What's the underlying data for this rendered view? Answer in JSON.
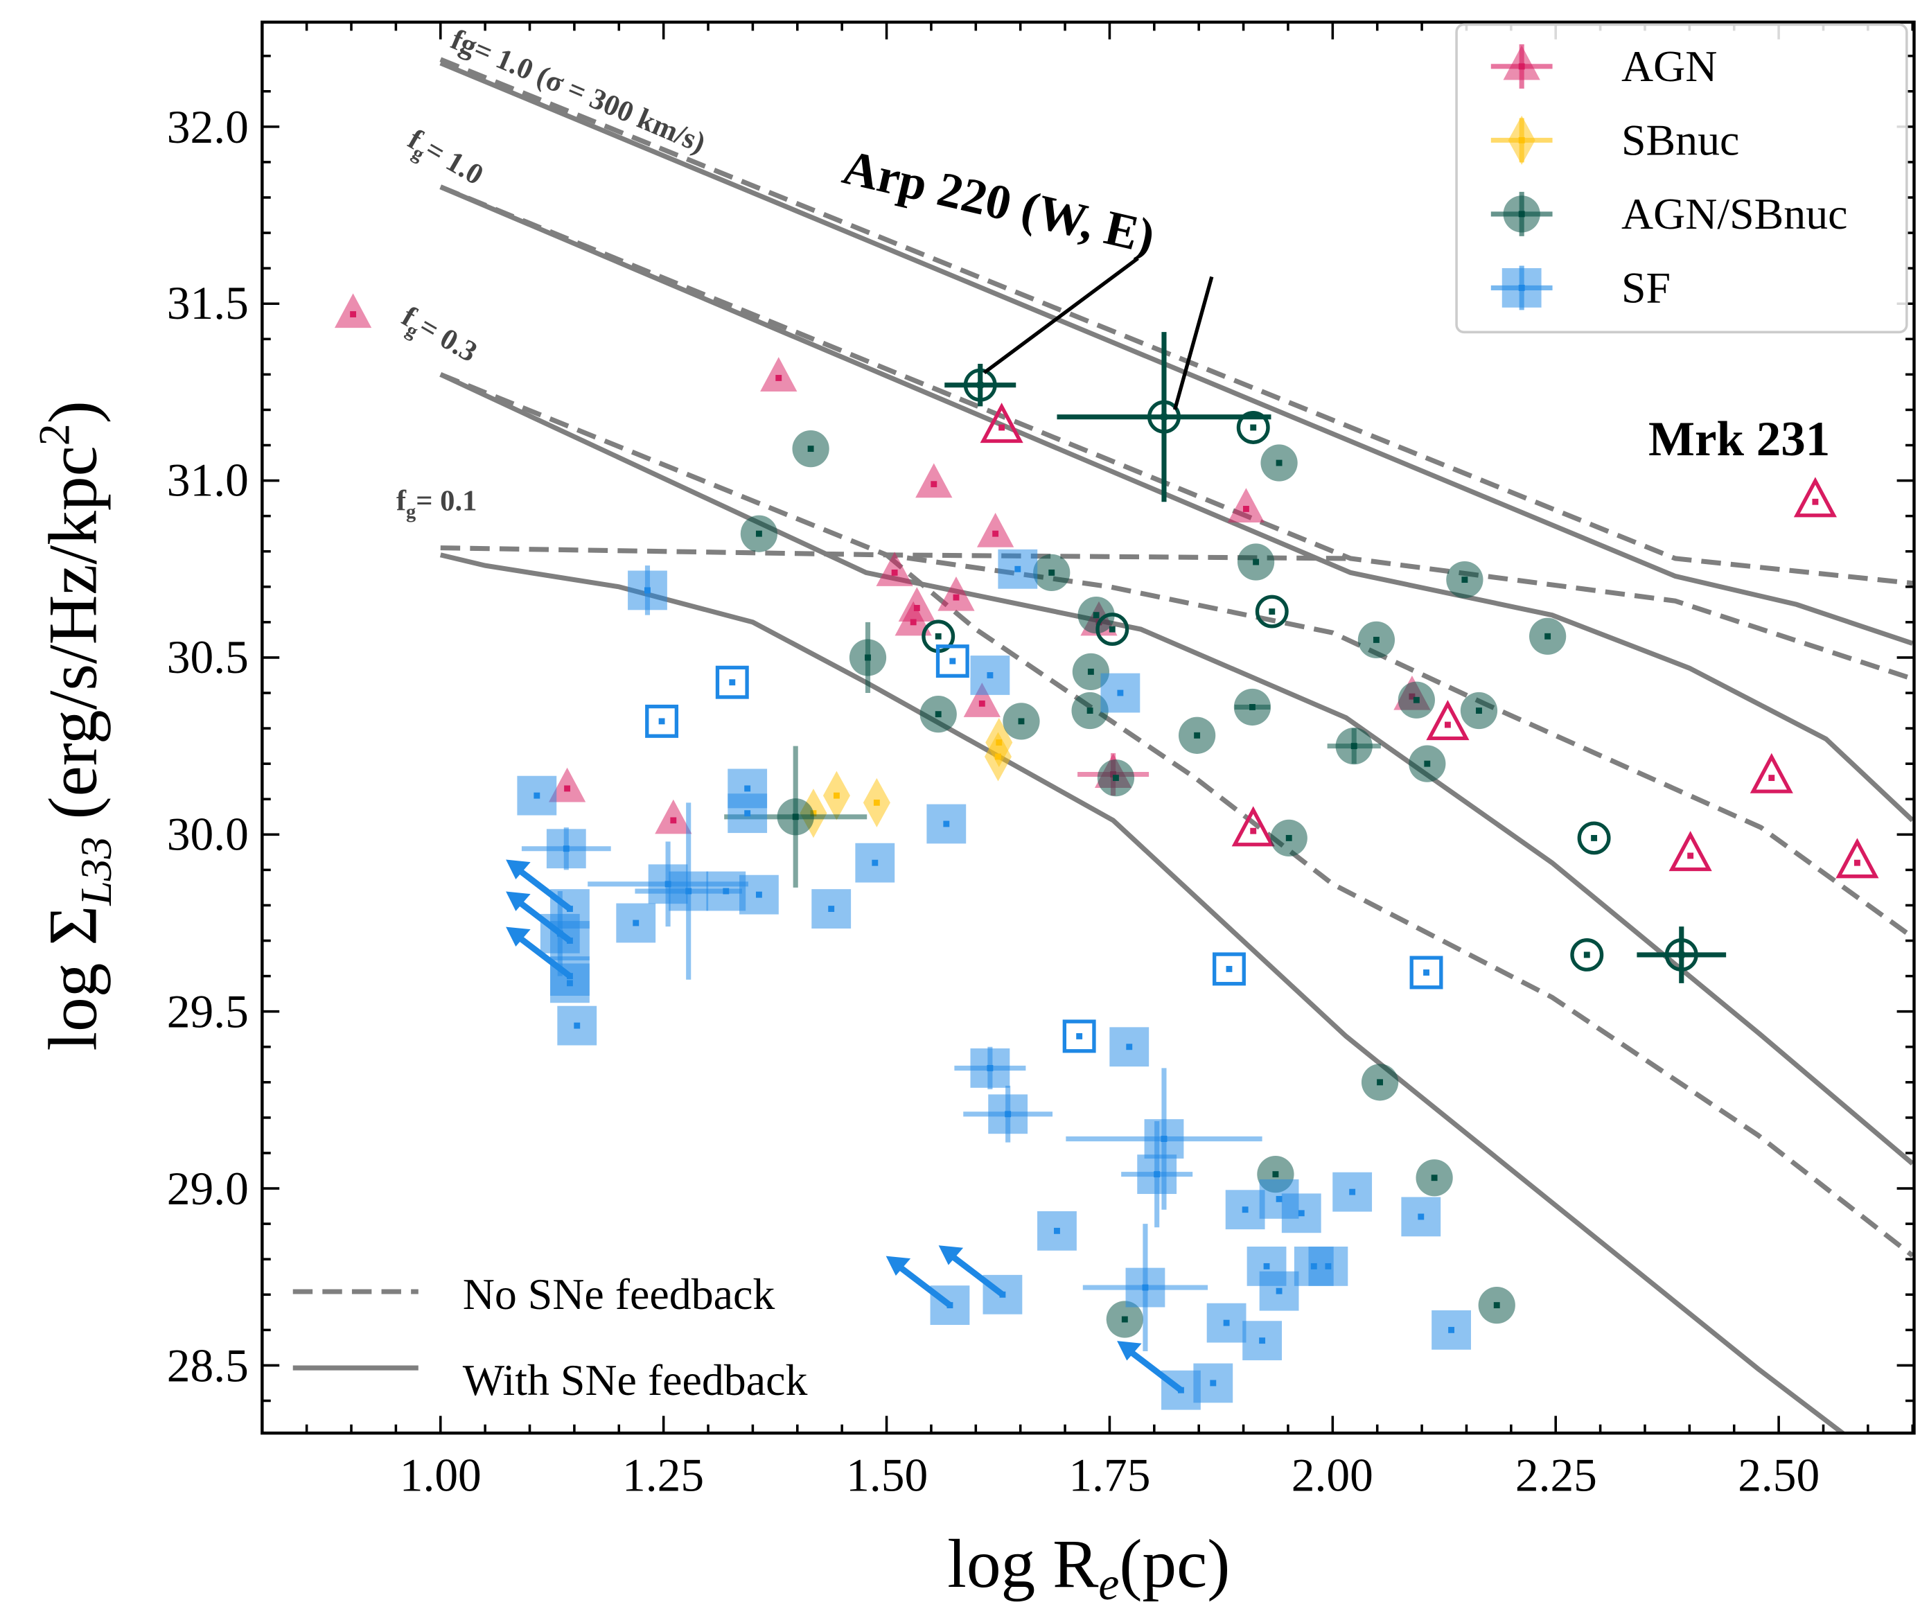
{
  "chart_data": {
    "type": "scatter",
    "xlabel": "log R",
    "xlabel_sub": "e",
    "xlabel_unit": "(pc)",
    "ylabel": "log Σ",
    "ylabel_sub": "L33",
    "ylabel_unit": "(erg/s/Hz/kpc",
    "ylabel_sup": "2",
    "ylabel_close": ")",
    "xlim": [
      0.8,
      2.652
    ],
    "ylim": [
      28.31,
      32.295
    ],
    "xticks": [
      "1.00",
      "1.25",
      "1.50",
      "1.75",
      "2.00",
      "2.25",
      "2.50"
    ],
    "yticks": [
      "28.5",
      "29.0",
      "29.5",
      "30.0",
      "30.5",
      "31.0",
      "31.5",
      "32.0"
    ],
    "grid": false,
    "legend_position": "top-right",
    "colors": {
      "AGN": "#d81b60",
      "SBnuc": "#ffc107",
      "AGN/SBnuc": "#004d40",
      "SF": "#1e88e5",
      "model": "#7f7f7f"
    },
    "series": [
      {
        "name": "AGN",
        "marker": "triangle",
        "filled": [
          [
            0.902,
            31.47
          ],
          [
            1.379,
            31.29
          ],
          [
            1.553,
            30.99
          ],
          [
            1.622,
            30.85
          ],
          [
            1.509,
            30.74
          ],
          [
            1.534,
            30.64
          ],
          [
            1.578,
            30.67
          ],
          [
            1.53,
            30.6
          ],
          [
            1.607,
            30.37
          ],
          [
            1.738,
            30.6
          ],
          [
            1.903,
            30.92
          ],
          [
            2.089,
            30.39
          ],
          [
            1.754,
            30.17,
            0.04,
            0.06
          ],
          [
            1.142,
            30.13
          ],
          [
            1.261,
            30.04
          ]
        ],
        "open": [
          [
            1.629,
            31.15
          ],
          [
            2.541,
            30.94
          ],
          [
            1.911,
            30.01
          ],
          [
            2.129,
            30.31
          ],
          [
            2.492,
            30.16
          ],
          [
            2.401,
            29.94
          ],
          [
            2.588,
            29.92
          ]
        ]
      },
      {
        "name": "SBnuc",
        "marker": "diamond",
        "filled": [
          [
            1.626,
            30.26
          ],
          [
            1.625,
            30.22
          ],
          [
            1.418,
            30.06
          ],
          [
            1.444,
            30.11
          ],
          [
            1.489,
            30.09
          ]
        ],
        "open": []
      },
      {
        "name": "AGN/SBnuc",
        "marker": "circle",
        "filled": [
          [
            1.415,
            31.09
          ],
          [
            1.357,
            30.85
          ],
          [
            1.685,
            30.74
          ],
          [
            1.735,
            30.62
          ],
          [
            1.479,
            30.5,
            0,
            0.1
          ],
          [
            1.558,
            30.34
          ],
          [
            1.651,
            30.32
          ],
          [
            1.729,
            30.46
          ],
          [
            1.728,
            30.35
          ],
          [
            1.757,
            30.16
          ],
          [
            1.398,
            30.05,
            0.08,
            0.2
          ],
          [
            1.848,
            30.28
          ],
          [
            1.91,
            30.36,
            0.02,
            0
          ],
          [
            1.94,
            31.05
          ],
          [
            1.914,
            30.77
          ],
          [
            2.049,
            30.55
          ],
          [
            2.024,
            30.25,
            0.03,
            0.05
          ],
          [
            2.106,
            30.2
          ],
          [
            2.094,
            30.38
          ],
          [
            2.164,
            30.35
          ],
          [
            2.148,
            30.72
          ],
          [
            2.241,
            30.56
          ],
          [
            1.951,
            29.99
          ],
          [
            2.053,
            29.3
          ],
          [
            1.936,
            29.04
          ],
          [
            2.114,
            29.03
          ],
          [
            1.767,
            28.63
          ],
          [
            2.184,
            28.67
          ]
        ],
        "open": [
          [
            1.605,
            31.27,
            0.04,
            0.06
          ],
          [
            1.811,
            31.18,
            0.12,
            0.24
          ],
          [
            1.911,
            31.15
          ],
          [
            1.558,
            30.56
          ],
          [
            1.753,
            30.58
          ],
          [
            1.932,
            30.63
          ],
          [
            2.293,
            29.99
          ],
          [
            2.285,
            29.66
          ],
          [
            2.391,
            29.66,
            0.05,
            0.08
          ]
        ]
      },
      {
        "name": "SF",
        "marker": "square",
        "filled": [
          [
            1.232,
            30.69,
            0,
            0.07
          ],
          [
            1.647,
            30.75
          ],
          [
            1.616,
            30.45
          ],
          [
            1.762,
            30.4
          ],
          [
            1.567,
            30.03
          ],
          [
            1.108,
            30.11
          ],
          [
            1.141,
            29.96,
            0.05,
            0.06
          ],
          [
            1.344,
            30.13
          ],
          [
            1.344,
            30.06
          ],
          [
            1.255,
            29.86,
            0.09,
            0.12
          ],
          [
            1.219,
            29.75
          ],
          [
            1.278,
            29.84,
            0.06,
            0.25
          ],
          [
            1.32,
            29.84
          ],
          [
            1.357,
            29.83
          ],
          [
            1.438,
            29.79
          ],
          [
            1.487,
            29.92
          ],
          [
            1.134,
            29.72,
            0,
            0.12
          ],
          [
            1.145,
            29.58
          ],
          [
            1.153,
            29.46
          ],
          [
            1.616,
            29.34,
            0.04,
            0.06
          ],
          [
            1.636,
            29.21,
            0.05,
            0.08
          ],
          [
            1.772,
            29.4
          ],
          [
            1.811,
            29.14,
            0.11,
            0.2
          ],
          [
            1.803,
            29.04,
            0.04,
            0.15
          ],
          [
            1.691,
            28.88
          ],
          [
            1.902,
            28.94
          ],
          [
            1.94,
            28.97
          ],
          [
            1.965,
            28.93
          ],
          [
            2.022,
            28.99
          ],
          [
            2.099,
            28.92
          ],
          [
            1.926,
            28.78
          ],
          [
            1.979,
            28.78
          ],
          [
            1.995,
            28.78
          ],
          [
            1.94,
            28.71
          ],
          [
            1.79,
            28.72,
            0.07,
            0.18
          ],
          [
            1.881,
            28.62
          ],
          [
            1.921,
            28.57
          ],
          [
            2.133,
            28.6
          ],
          [
            1.866,
            28.45
          ]
        ],
        "open": [
          [
            1.574,
            30.49
          ],
          [
            1.327,
            30.43
          ],
          [
            1.248,
            30.32
          ],
          [
            1.884,
            29.62
          ],
          [
            2.105,
            29.61
          ],
          [
            1.716,
            29.43
          ]
        ],
        "upper_limits": [
          [
            1.145,
            29.79
          ],
          [
            1.145,
            29.7
          ],
          [
            1.145,
            29.6
          ],
          [
            1.571,
            28.67
          ],
          [
            1.63,
            28.7
          ],
          [
            1.83,
            28.43
          ]
        ]
      }
    ],
    "models": [
      {
        "style": "dashed",
        "points": [
          [
            1.0,
            32.19
          ],
          [
            2.384,
            30.78
          ],
          [
            2.65,
            30.71
          ]
        ]
      },
      {
        "style": "solid",
        "points": [
          [
            1.0,
            32.18
          ],
          [
            2.384,
            30.73
          ],
          [
            2.52,
            30.65
          ],
          [
            2.65,
            30.54
          ]
        ]
      },
      {
        "style": "dashed",
        "points": [
          [
            1.0,
            31.83
          ],
          [
            2.02,
            30.78
          ],
          [
            2.384,
            30.66
          ],
          [
            2.65,
            30.44
          ]
        ]
      },
      {
        "style": "solid",
        "points": [
          [
            1.0,
            31.83
          ],
          [
            2.02,
            30.74
          ],
          [
            2.246,
            30.62
          ],
          [
            2.4,
            30.47
          ],
          [
            2.553,
            30.27
          ],
          [
            2.65,
            30.04
          ]
        ]
      },
      {
        "style": "dashed",
        "points": [
          [
            1.0,
            30.81
          ],
          [
            1.5,
            30.79
          ],
          [
            2.02,
            30.78
          ]
        ]
      },
      {
        "style": "dashed",
        "points": [
          [
            1.0,
            31.3
          ],
          [
            1.5,
            30.79
          ],
          [
            1.75,
            30.7
          ],
          [
            2.0,
            30.57
          ],
          [
            2.17,
            30.37
          ],
          [
            2.48,
            30.02
          ],
          [
            2.65,
            29.71
          ]
        ]
      },
      {
        "style": "dashed",
        "points": [
          [
            1.5,
            30.79
          ],
          [
            1.6,
            30.58
          ],
          [
            1.846,
            30.16
          ],
          [
            2.0,
            29.86
          ],
          [
            2.246,
            29.54
          ],
          [
            2.477,
            29.15
          ],
          [
            2.65,
            28.81
          ]
        ]
      },
      {
        "style": "solid",
        "points": [
          [
            1.0,
            31.3
          ],
          [
            1.477,
            30.74
          ],
          [
            1.785,
            30.58
          ],
          [
            2.015,
            30.33
          ],
          [
            2.246,
            29.92
          ],
          [
            2.477,
            29.44
          ],
          [
            2.65,
            29.07
          ]
        ]
      },
      {
        "style": "solid",
        "points": [
          [
            1.0,
            30.79
          ],
          [
            1.05,
            30.76
          ],
          [
            1.2,
            30.7
          ],
          [
            1.35,
            30.6
          ],
          [
            1.477,
            30.43
          ],
          [
            1.754,
            30.04
          ],
          [
            2.015,
            29.43
          ],
          [
            2.246,
            28.96
          ],
          [
            2.477,
            28.49
          ],
          [
            2.623,
            28.21
          ]
        ]
      }
    ],
    "curve_labels": {
      "fg1_sigma": "fg= 1.0 (σ = 300 km/s)",
      "fg1_f": "f",
      "fg1_sub": "g",
      "fg1_val": "= 1.0",
      "fg03_f": "f",
      "fg03_sub": "g",
      "fg03_val": "= 0.3",
      "fg01_f": "f",
      "fg01_sub": "g",
      "fg01_val": "= 0.1"
    },
    "annotations": {
      "arp220": "Arp 220 (W, E)",
      "mrk231": "Mrk 231"
    },
    "legend": {
      "items": [
        "AGN",
        "SBnuc",
        "AGN/SBnuc",
        "SF"
      ],
      "no_sne": "No SNe feedback",
      "with_sne": "With SNe feedback"
    }
  }
}
